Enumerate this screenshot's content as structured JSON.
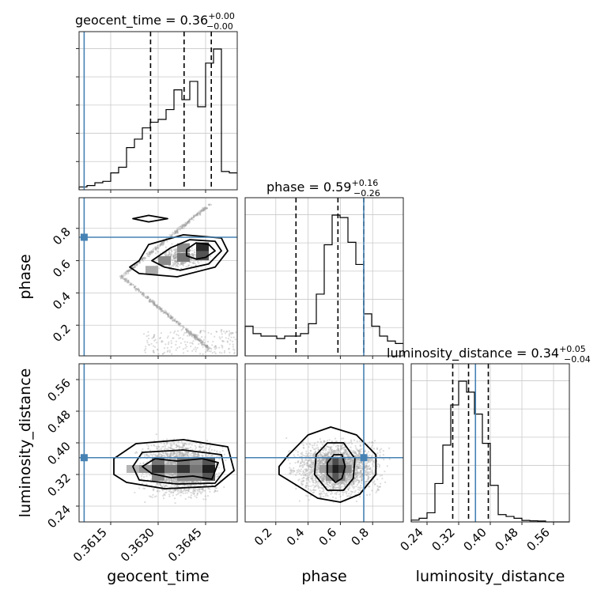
{
  "chart_data": {
    "type": "corner",
    "parameters": [
      "geocent_time",
      "phase",
      "luminosity_distance"
    ],
    "axis_labels": {
      "geocent_time": "geocent_time",
      "phase": "phase",
      "luminosity_distance": "luminosity_distance"
    },
    "titles": [
      {
        "param": "geocent_time",
        "prefix": "geocent_time = ",
        "median": "0.36",
        "plus": "+0.00",
        "minus": "−0.00"
      },
      {
        "param": "phase",
        "prefix": "phase = ",
        "median": "0.59",
        "plus": "+0.16",
        "minus": "−0.26"
      },
      {
        "param": "luminosity_distance",
        "prefix": "luminosity_distance = ",
        "median": "0.34",
        "plus": "+0.05",
        "minus": "−0.04"
      }
    ],
    "ranges": {
      "geocent_time": [
        0.3605,
        0.3655
      ],
      "phase": [
        0.01,
        0.99
      ],
      "luminosity_distance": [
        0.2,
        0.6
      ]
    },
    "ticks": {
      "geocent_time": [
        "0.3615",
        "0.3630",
        "0.3645"
      ],
      "phase": [
        "0.2",
        "0.4",
        "0.6",
        "0.8"
      ],
      "luminosity_distance": [
        "0.24",
        "0.32",
        "0.40",
        "0.48",
        "0.56"
      ]
    },
    "truths": {
      "geocent_time": 0.36066,
      "phase": 0.745,
      "luminosity_distance": 0.3625
    },
    "quantiles": {
      "geocent_time": [
        0.36276,
        0.36382,
        0.36468
      ],
      "phase": [
        0.325,
        0.585,
        0.745
      ],
      "luminosity_distance": [
        0.305,
        0.345,
        0.395
      ]
    },
    "histograms": {
      "geocent_time": {
        "edges": [
          0.3605,
          0.36075,
          0.361,
          0.36125,
          0.3615,
          0.36175,
          0.362,
          0.36225,
          0.3625,
          0.36275,
          0.363,
          0.36325,
          0.3635,
          0.36375,
          0.364,
          0.36425,
          0.3645,
          0.36475,
          0.365,
          0.36525,
          0.3655
        ],
        "counts": [
          2,
          3,
          5,
          6,
          12,
          16,
          30,
          36,
          44,
          48,
          50,
          57,
          71,
          64,
          77,
          59,
          90,
          100,
          13,
          12
        ]
      },
      "phase": {
        "edges": [
          0.01,
          0.059,
          0.108,
          0.157,
          0.206,
          0.255,
          0.304,
          0.353,
          0.402,
          0.451,
          0.5,
          0.549,
          0.598,
          0.647,
          0.696,
          0.745,
          0.794,
          0.843,
          0.892,
          0.941,
          0.99
        ],
        "counts": [
          12,
          9,
          8,
          8,
          7,
          8,
          8,
          9,
          13,
          25,
          45,
          57,
          56,
          46,
          37,
          17,
          12,
          8,
          6,
          5
        ]
      },
      "luminosity_distance": {
        "edges": [
          0.2,
          0.22,
          0.24,
          0.26,
          0.28,
          0.3,
          0.32,
          0.34,
          0.36,
          0.38,
          0.4,
          0.42,
          0.44,
          0.46,
          0.48,
          0.5,
          0.52,
          0.54,
          0.56,
          0.58,
          0.6
        ],
        "counts": [
          1,
          2,
          5,
          21,
          42,
          64,
          77,
          71,
          59,
          43,
          20,
          4,
          3,
          2,
          0.8,
          0.6,
          0.5,
          0,
          0,
          0
        ]
      }
    },
    "contours": {
      "phase__geocent_time": [
        [
          [
            0.3645,
            0.62
          ],
          [
            0.3648,
            0.66
          ],
          [
            0.3646,
            0.7
          ],
          [
            0.3642,
            0.71
          ],
          [
            0.3639,
            0.67
          ],
          [
            0.3639,
            0.63
          ],
          [
            0.3642,
            0.61
          ],
          [
            0.3645,
            0.62
          ]
        ],
        [
          [
            0.3632,
            0.56
          ],
          [
            0.3637,
            0.54
          ],
          [
            0.3646,
            0.58
          ],
          [
            0.365,
            0.66
          ],
          [
            0.3648,
            0.72
          ],
          [
            0.364,
            0.73
          ],
          [
            0.3634,
            0.68
          ],
          [
            0.3628,
            0.6
          ],
          [
            0.3632,
            0.56
          ]
        ],
        [
          [
            0.3624,
            0.52
          ],
          [
            0.3636,
            0.5
          ],
          [
            0.3648,
            0.56
          ],
          [
            0.3652,
            0.66
          ],
          [
            0.365,
            0.74
          ],
          [
            0.3638,
            0.76
          ],
          [
            0.3627,
            0.7
          ],
          [
            0.3624,
            0.6
          ],
          [
            0.3621,
            0.56
          ],
          [
            0.3624,
            0.52
          ]
        ],
        [
          [
            0.3633,
            0.86
          ],
          [
            0.3627,
            0.88
          ],
          [
            0.3622,
            0.86
          ],
          [
            0.3627,
            0.84
          ],
          [
            0.3633,
            0.86
          ]
        ]
      ],
      "luminosity_distance__geocent_time": [
        [
          [
            0.3628,
            0.322
          ],
          [
            0.3634,
            0.312
          ],
          [
            0.3641,
            0.316
          ],
          [
            0.3647,
            0.308
          ],
          [
            0.3649,
            0.35
          ],
          [
            0.3644,
            0.36
          ],
          [
            0.3636,
            0.354
          ],
          [
            0.3629,
            0.36
          ],
          [
            0.3625,
            0.34
          ],
          [
            0.3628,
            0.322
          ]
        ],
        [
          [
            0.3624,
            0.306
          ],
          [
            0.3636,
            0.296
          ],
          [
            0.3648,
            0.298
          ],
          [
            0.3651,
            0.33
          ],
          [
            0.365,
            0.37
          ],
          [
            0.3638,
            0.382
          ],
          [
            0.3625,
            0.376
          ],
          [
            0.3622,
            0.34
          ],
          [
            0.3624,
            0.306
          ]
        ],
        [
          [
            0.362,
            0.3
          ],
          [
            0.3632,
            0.284
          ],
          [
            0.3648,
            0.29
          ],
          [
            0.3654,
            0.33
          ],
          [
            0.3652,
            0.39
          ],
          [
            0.3638,
            0.408
          ],
          [
            0.3623,
            0.398
          ],
          [
            0.3616,
            0.36
          ],
          [
            0.3616,
            0.32
          ],
          [
            0.362,
            0.3
          ]
        ]
      ],
      "luminosity_distance__phase": [
        [
          [
            0.52,
            0.32
          ],
          [
            0.57,
            0.3
          ],
          [
            0.61,
            0.31
          ],
          [
            0.63,
            0.34
          ],
          [
            0.61,
            0.37
          ],
          [
            0.56,
            0.37
          ],
          [
            0.52,
            0.35
          ],
          [
            0.52,
            0.32
          ]
        ],
        [
          [
            0.44,
            0.32
          ],
          [
            0.52,
            0.28
          ],
          [
            0.62,
            0.28
          ],
          [
            0.68,
            0.31
          ],
          [
            0.69,
            0.36
          ],
          [
            0.62,
            0.4
          ],
          [
            0.52,
            0.4
          ],
          [
            0.45,
            0.37
          ],
          [
            0.44,
            0.32
          ]
        ],
        [
          [
            0.22,
            0.32
          ],
          [
            0.34,
            0.29
          ],
          [
            0.46,
            0.26
          ],
          [
            0.6,
            0.25
          ],
          [
            0.72,
            0.27
          ],
          [
            0.82,
            0.32
          ],
          [
            0.82,
            0.37
          ],
          [
            0.7,
            0.42
          ],
          [
            0.54,
            0.44
          ],
          [
            0.4,
            0.42
          ],
          [
            0.28,
            0.37
          ],
          [
            0.22,
            0.34
          ],
          [
            0.22,
            0.32
          ]
        ]
      ]
    },
    "density_cells": {
      "phase__geocent_time": [
        [
          0.3644,
          0.685,
          0.9
        ],
        [
          0.3644,
          0.63,
          0.7
        ],
        [
          0.3638,
          0.62,
          0.55
        ],
        [
          0.3632,
          0.6,
          0.45
        ],
        [
          0.3638,
          0.68,
          0.45
        ],
        [
          0.3628,
          0.54,
          0.3
        ]
      ],
      "luminosity_distance__geocent_time": [
        [
          0.3646,
          0.334,
          0.95
        ],
        [
          0.3646,
          0.314,
          0.7
        ],
        [
          0.3646,
          0.354,
          0.7
        ],
        [
          0.3638,
          0.334,
          0.85
        ],
        [
          0.363,
          0.334,
          0.85
        ],
        [
          0.3634,
          0.334,
          0.55
        ],
        [
          0.3642,
          0.334,
          0.55
        ],
        [
          0.363,
          0.354,
          0.55
        ],
        [
          0.3638,
          0.354,
          0.55
        ],
        [
          0.363,
          0.314,
          0.45
        ],
        [
          0.3638,
          0.314,
          0.45
        ],
        [
          0.3626,
          0.334,
          0.4
        ],
        [
          0.3622,
          0.334,
          0.25
        ],
        [
          0.3642,
          0.354,
          0.45
        ],
        [
          0.3642,
          0.314,
          0.45
        ]
      ],
      "luminosity_distance__phase": [
        [
          0.57,
          0.334,
          0.95
        ],
        [
          0.61,
          0.334,
          0.8
        ],
        [
          0.57,
          0.354,
          0.75
        ],
        [
          0.57,
          0.314,
          0.7
        ],
        [
          0.53,
          0.334,
          0.65
        ],
        [
          0.61,
          0.354,
          0.55
        ],
        [
          0.61,
          0.314,
          0.5
        ],
        [
          0.53,
          0.354,
          0.45
        ],
        [
          0.53,
          0.314,
          0.4
        ],
        [
          0.65,
          0.334,
          0.45
        ],
        [
          0.49,
          0.334,
          0.35
        ]
      ]
    },
    "truth_color": "#4682b4",
    "grid": true
  }
}
